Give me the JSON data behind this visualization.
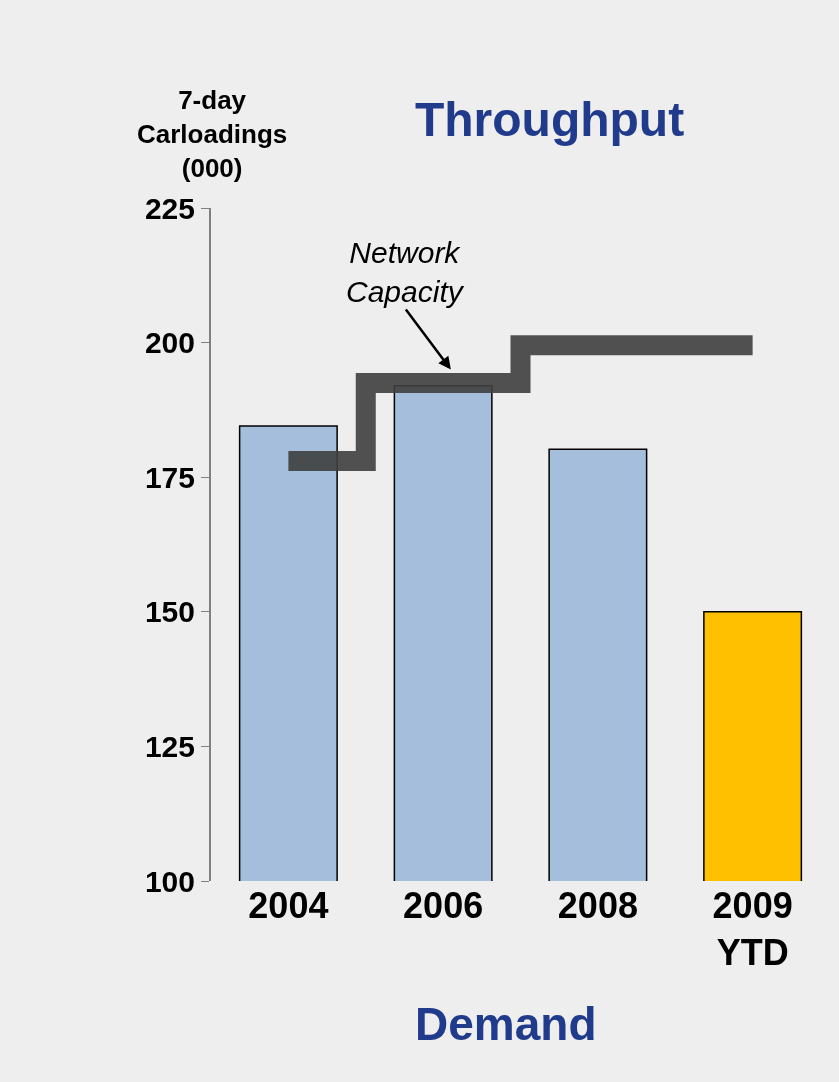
{
  "chart_data": {
    "type": "bar",
    "title": "Throughput",
    "xlabel": "Demand",
    "ylabel": "7-day\nCarloadings\n(000)",
    "categories": [
      "2004",
      "2006",
      "2008",
      "2009\nYTD"
    ],
    "series": [
      {
        "colors": [
          "#a4bedc",
          "#a4bedc",
          "#a4bedc",
          "#ffc000"
        ],
        "values": [
          184.5,
          192,
          180.2,
          150
        ]
      },
      {
        "type": "step",
        "name": "Network\nCapacity",
        "color": "#404040",
        "values": [
          178,
          192.5,
          199.5,
          199.5
        ]
      }
    ],
    "ylim": [
      100,
      225
    ],
    "yticks": [
      100,
      125,
      150,
      175,
      200,
      225
    ],
    "grid": false
  }
}
